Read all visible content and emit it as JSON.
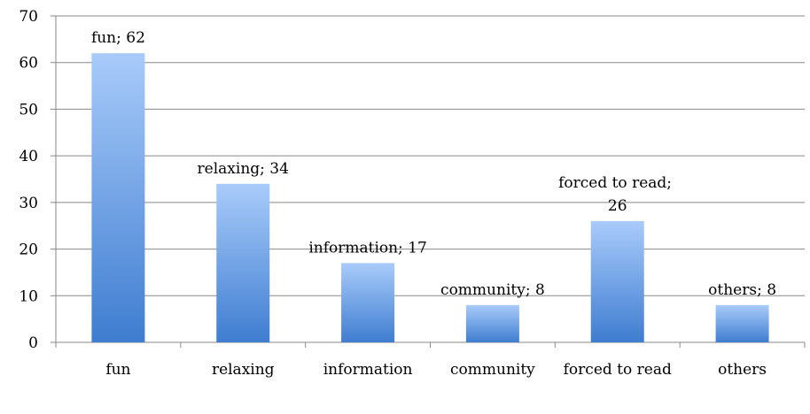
{
  "chart_data": {
    "type": "bar",
    "categories": [
      "fun",
      "relaxing",
      "information",
      "community",
      "forced to read",
      "others"
    ],
    "values": [
      62,
      34,
      17,
      8,
      26,
      8
    ],
    "value_labels": [
      "fun; 62",
      "relaxing; 34",
      "information; 17",
      "community; 8",
      "forced to read; 26",
      "others; 8"
    ],
    "color": "#4a86d8",
    "ylim": [
      0,
      70
    ],
    "yticks": [
      0,
      10,
      20,
      30,
      40,
      50,
      60,
      70
    ],
    "grid": true
  }
}
